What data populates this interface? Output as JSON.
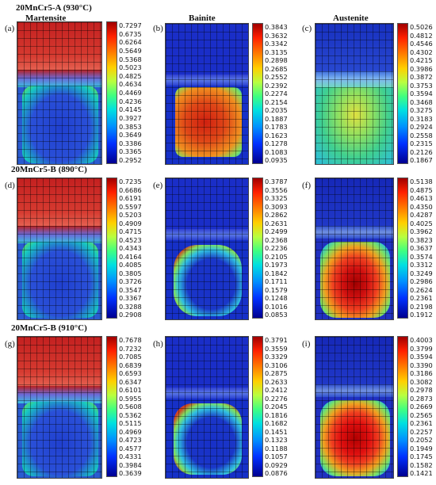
{
  "header": {
    "row1": "20MnCr5-A (930°C)",
    "row2": "20MnCr5-B (890°C)",
    "row3": "20MnCr5-B (910°C)",
    "col1": "Martensite",
    "col2": "Bainite",
    "col3": "Austenite"
  },
  "panels": [
    {
      "letter": "(a)",
      "ticks": [
        "0.7297",
        "0.6735",
        "0.6264",
        "0.5649",
        "0.5368",
        "0.5023",
        "0.4825",
        "0.4634",
        "0.4469",
        "0.4236",
        "0.4145",
        "0.3927",
        "0.3853",
        "0.3649",
        "0.3386",
        "0.3365",
        "0.2952"
      ]
    },
    {
      "letter": "(b)",
      "ticks": [
        "0.3843",
        "0.3632",
        "0.3342",
        "0.3135",
        "0.2898",
        "0.2685",
        "0.2552",
        "0.2392",
        "0.2274",
        "0.2154",
        "0.2035",
        "0.1887",
        "0.1783",
        "0.1623",
        "0.1278",
        "0.1083",
        "0.0935"
      ]
    },
    {
      "letter": "(c)",
      "ticks": [
        "0.5026",
        "0.4812",
        "0.4546",
        "0.4302",
        "0.4215",
        "0.3986",
        "0.3872",
        "0.3753",
        "0.3594",
        "0.3468",
        "0.3275",
        "0.3183",
        "0.2924",
        "0.2558",
        "0.2315",
        "0.2126",
        "0.1867"
      ]
    },
    {
      "letter": "(d)",
      "ticks": [
        "0.7235",
        "0.6686",
        "0.6191",
        "0.5597",
        "0.5203",
        "0.4909",
        "0.4715",
        "0.4523",
        "0.4343",
        "0.4164",
        "0.4085",
        "0.3805",
        "0.3726",
        "0.3547",
        "0.3367",
        "0.3288",
        "0.2908"
      ]
    },
    {
      "letter": "(e)",
      "ticks": [
        "0.3787",
        "0.3556",
        "0.3325",
        "0.3093",
        "0.2862",
        "0.2631",
        "0.2499",
        "0.2368",
        "0.2236",
        "0.2105",
        "0.1973",
        "0.1842",
        "0.1711",
        "0.1579",
        "0.1248",
        "0.1016",
        "0.0853"
      ]
    },
    {
      "letter": "(f)",
      "ticks": [
        "0.5138",
        "0.4875",
        "0.4613",
        "0.4350",
        "0.4287",
        "0.4025",
        "0.3962",
        "0.3823",
        "0.3637",
        "0.3574",
        "0.3312",
        "0.3249",
        "0.2986",
        "0.2624",
        "0.2361",
        "0.2198",
        "0.1912"
      ]
    },
    {
      "letter": "(g)",
      "ticks": [
        "0.7678",
        "0.7232",
        "0.7085",
        "0.6839",
        "0.6593",
        "0.6347",
        "0.6101",
        "0.5955",
        "0.5608",
        "0.5362",
        "0.5115",
        "0.4969",
        "0.4723",
        "0.4577",
        "0.4331",
        "0.3984",
        "0.3639"
      ]
    },
    {
      "letter": "(h)",
      "ticks": [
        "0.3791",
        "0.3559",
        "0.3329",
        "0.3106",
        "0.2875",
        "0.2633",
        "0.2412",
        "0.2276",
        "0.2045",
        "0.1816",
        "0.1682",
        "0.1451",
        "0.1323",
        "0.1188",
        "0.1057",
        "0.0929",
        "0.0876"
      ]
    },
    {
      "letter": "(i)",
      "ticks": [
        "0.4003",
        "0.3799",
        "0.3594",
        "0.3390",
        "0.3186",
        "0.3082",
        "0.2978",
        "0.2873",
        "0.2669",
        "0.2565",
        "0.2361",
        "0.2257",
        "0.2052",
        "0.1949",
        "0.1745",
        "0.1582",
        "0.1421"
      ]
    }
  ]
}
